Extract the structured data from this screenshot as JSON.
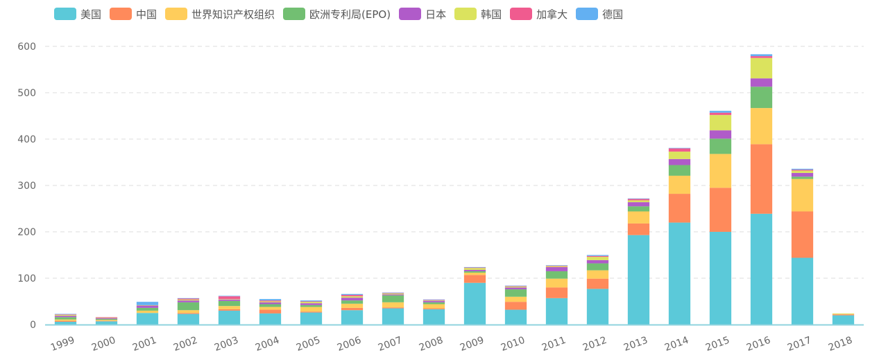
{
  "chart_data": {
    "type": "bar",
    "stacked": true,
    "categories": [
      "1999",
      "2000",
      "2001",
      "2002",
      "2003",
      "2004",
      "2005",
      "2006",
      "2007",
      "2008",
      "2009",
      "2010",
      "2011",
      "2012",
      "2013",
      "2014",
      "2015",
      "2016",
      "2017",
      "2018"
    ],
    "ylim": [
      0,
      600
    ],
    "yticks": [
      0,
      100,
      200,
      300,
      400,
      500,
      600
    ],
    "grid": true,
    "legend_position": "top-left",
    "series": [
      {
        "name": "美国",
        "color": "#5bc9d9",
        "values": [
          6,
          7,
          25,
          23,
          30,
          24,
          26,
          31,
          35,
          33,
          90,
          32,
          57,
          77,
          193,
          220,
          200,
          239,
          144,
          20
        ]
      },
      {
        "name": "中国",
        "color": "#ff8a5b",
        "values": [
          2,
          1,
          0,
          2,
          3,
          8,
          2,
          5,
          2,
          2,
          17,
          17,
          23,
          22,
          25,
          62,
          95,
          150,
          100,
          2
        ]
      },
      {
        "name": "世界知识产权组织",
        "color": "#ffcd5b",
        "values": [
          3,
          2,
          5,
          6,
          7,
          6,
          10,
          9,
          11,
          9,
          5,
          11,
          19,
          18,
          26,
          39,
          73,
          78,
          70,
          1
        ]
      },
      {
        "name": "欧洲专利局(EPO)",
        "color": "#72bf72",
        "values": [
          5,
          2,
          6,
          17,
          11,
          6,
          4,
          7,
          15,
          4,
          3,
          16,
          16,
          15,
          11,
          23,
          33,
          46,
          5,
          0
        ]
      },
      {
        "name": "日本",
        "color": "#b05bc9",
        "values": [
          3,
          2,
          5,
          4,
          3,
          4,
          4,
          6,
          2,
          3,
          3,
          4,
          9,
          7,
          9,
          13,
          18,
          18,
          8,
          0
        ]
      },
      {
        "name": "韩国",
        "color": "#dbe35e",
        "values": [
          2,
          1,
          1,
          2,
          1,
          2,
          3,
          3,
          2,
          1,
          4,
          2,
          2,
          7,
          4,
          16,
          33,
          44,
          5,
          1
        ]
      },
      {
        "name": "加拿大",
        "color": "#f05b8f",
        "values": [
          1,
          1,
          0,
          2,
          6,
          2,
          1,
          3,
          1,
          1,
          1,
          1,
          1,
          2,
          3,
          7,
          5,
          4,
          2,
          0
        ]
      },
      {
        "name": "德国",
        "color": "#63b0f2",
        "values": [
          1,
          0,
          7,
          1,
          1,
          3,
          2,
          2,
          1,
          1,
          1,
          1,
          1,
          2,
          1,
          1,
          4,
          4,
          2,
          0
        ]
      }
    ]
  }
}
